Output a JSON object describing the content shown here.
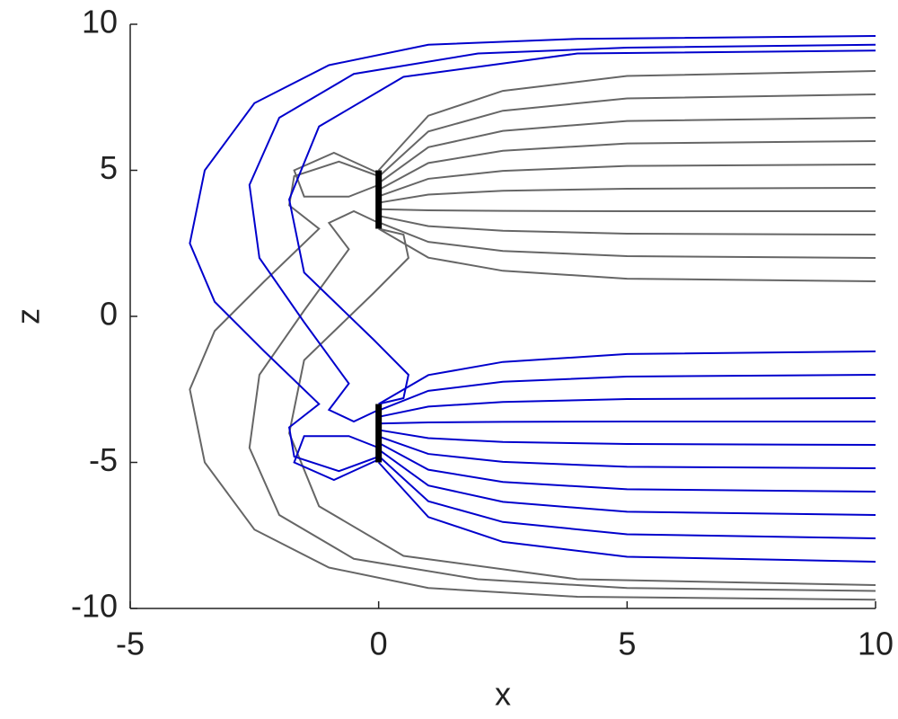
{
  "chart_data": {
    "type": "line",
    "xlabel": "x",
    "ylabel": "z",
    "xlim": [
      -5,
      10
    ],
    "ylim": [
      -10,
      10
    ],
    "xticks": [
      -5,
      0,
      5,
      10
    ],
    "yticks": [
      -10,
      -5,
      0,
      5,
      10
    ],
    "series": [
      {
        "color": "#666666",
        "x": [
          0,
          1,
          2.5,
          5,
          10
        ],
        "y": [
          3,
          2.01,
          1.56,
          1.29,
          1.2
        ]
      },
      {
        "color": "#666666",
        "x": [
          0,
          1,
          2.5,
          5,
          10
        ],
        "y": [
          3.22,
          2.55,
          2.24,
          2.06,
          2
        ]
      },
      {
        "color": "#666666",
        "x": [
          0,
          1,
          2.5,
          5,
          10
        ],
        "y": [
          3.44,
          3.09,
          2.93,
          2.83,
          2.8
        ]
      },
      {
        "color": "#666666",
        "x": [
          0,
          1,
          2.5,
          5,
          10
        ],
        "y": [
          3.67,
          3.63,
          3.61,
          3.6,
          3.6
        ]
      },
      {
        "color": "#666666",
        "x": [
          0,
          1,
          2.5,
          5,
          10
        ],
        "y": [
          3.89,
          4.17,
          4.3,
          4.37,
          4.4
        ]
      },
      {
        "color": "#666666",
        "x": [
          0,
          1,
          2.5,
          5,
          10
        ],
        "y": [
          4.11,
          4.71,
          4.98,
          5.15,
          5.2
        ]
      },
      {
        "color": "#666666",
        "x": [
          0,
          1,
          2.5,
          5,
          10
        ],
        "y": [
          4.33,
          5.25,
          5.67,
          5.92,
          6
        ]
      },
      {
        "color": "#666666",
        "x": [
          0,
          1,
          2.5,
          5,
          10
        ],
        "y": [
          4.56,
          5.79,
          6.35,
          6.69,
          6.8
        ]
      },
      {
        "color": "#666666",
        "x": [
          0,
          1,
          2.5,
          5,
          10
        ],
        "y": [
          4.78,
          6.33,
          7.04,
          7.46,
          7.6
        ]
      },
      {
        "color": "#666666",
        "x": [
          0,
          1,
          2.5,
          5,
          10
        ],
        "y": [
          5,
          6.87,
          7.72,
          8.23,
          8.4
        ]
      },
      {
        "color": "#666666",
        "x": [
          0,
          -0.9,
          -1.7,
          -1.5,
          -0.6,
          0
        ],
        "y": [
          4.9,
          5.6,
          5,
          4.1,
          4.1,
          4.5
        ]
      },
      {
        "color": "#666666",
        "x": [
          0,
          -0.8,
          -1.7,
          -1.8,
          -1.2,
          -2.3,
          -3.3,
          -3.8,
          -3.5,
          -2.5,
          -1,
          1,
          4,
          10
        ],
        "y": [
          4.8,
          5.3,
          4.8,
          3.8,
          3,
          1.2,
          -0.5,
          -2.5,
          -5,
          -7.3,
          -8.6,
          -9.3,
          -9.6,
          -9.7
        ]
      },
      {
        "color": "#666666",
        "x": [
          0,
          -0.5,
          -1,
          -0.6,
          -1.5,
          -2.4,
          -2.6,
          -2,
          -0.5,
          2,
          5,
          10
        ],
        "y": [
          3.2,
          3.6,
          3.2,
          2.3,
          0.2,
          -2,
          -4.5,
          -6.8,
          -8.3,
          -9,
          -9.3,
          -9.4
        ]
      },
      {
        "color": "#666666",
        "x": [
          0,
          0.5,
          0.6,
          -0.1,
          -1.5,
          -1.8,
          -1.2,
          0.5,
          4,
          10
        ],
        "y": [
          3,
          2.8,
          2,
          0.8,
          -1.5,
          -4,
          -6.5,
          -8.2,
          -9,
          -9.2
        ]
      },
      {
        "color": "#0000cc",
        "x": [
          0,
          1,
          2.5,
          5,
          10
        ],
        "y": [
          -3,
          -2.01,
          -1.56,
          -1.29,
          -1.2
        ]
      },
      {
        "color": "#0000cc",
        "x": [
          0,
          1,
          2.5,
          5,
          10
        ],
        "y": [
          -3.22,
          -2.55,
          -2.24,
          -2.06,
          -2
        ]
      },
      {
        "color": "#0000cc",
        "x": [
          0,
          1,
          2.5,
          5,
          10
        ],
        "y": [
          -3.44,
          -3.09,
          -2.93,
          -2.83,
          -2.8
        ]
      },
      {
        "color": "#0000cc",
        "x": [
          0,
          1,
          2.5,
          5,
          10
        ],
        "y": [
          -3.67,
          -3.63,
          -3.61,
          -3.6,
          -3.6
        ]
      },
      {
        "color": "#0000cc",
        "x": [
          0,
          1,
          2.5,
          5,
          10
        ],
        "y": [
          -3.89,
          -4.17,
          -4.3,
          -4.37,
          -4.4
        ]
      },
      {
        "color": "#0000cc",
        "x": [
          0,
          1,
          2.5,
          5,
          10
        ],
        "y": [
          -4.11,
          -4.71,
          -4.98,
          -5.15,
          -5.2
        ]
      },
      {
        "color": "#0000cc",
        "x": [
          0,
          1,
          2.5,
          5,
          10
        ],
        "y": [
          -4.33,
          -5.25,
          -5.67,
          -5.92,
          -6
        ]
      },
      {
        "color": "#0000cc",
        "x": [
          0,
          1,
          2.5,
          5,
          10
        ],
        "y": [
          -4.56,
          -5.79,
          -6.35,
          -6.69,
          -6.8
        ]
      },
      {
        "color": "#0000cc",
        "x": [
          0,
          1,
          2.5,
          5,
          10
        ],
        "y": [
          -4.78,
          -6.33,
          -7.04,
          -7.46,
          -7.6
        ]
      },
      {
        "color": "#0000cc",
        "x": [
          0,
          1,
          2.5,
          5,
          10
        ],
        "y": [
          -5,
          -6.87,
          -7.72,
          -8.23,
          -8.4
        ]
      },
      {
        "color": "#0000cc",
        "x": [
          0,
          -0.9,
          -1.7,
          -1.5,
          -0.6,
          0
        ],
        "y": [
          -4.9,
          -5.6,
          -5,
          -4.1,
          -4.1,
          -4.5
        ]
      },
      {
        "color": "#0000cc",
        "x": [
          0,
          -0.8,
          -1.7,
          -1.8,
          -1.2,
          -2.3,
          -3.3,
          -3.8,
          -3.5,
          -2.5,
          -1,
          1,
          4,
          10
        ],
        "y": [
          -4.8,
          -5.3,
          -4.8,
          -3.8,
          -3,
          -1.2,
          0.5,
          2.5,
          5,
          7.3,
          8.6,
          9.3,
          9.5,
          9.6
        ]
      },
      {
        "color": "#0000cc",
        "x": [
          0,
          -0.5,
          -1,
          -0.6,
          -1.5,
          -2.4,
          -2.6,
          -2,
          -0.5,
          2,
          5,
          10
        ],
        "y": [
          -3.2,
          -3.6,
          -3.2,
          -2.3,
          -0.2,
          2,
          4.5,
          6.8,
          8.3,
          9,
          9.2,
          9.3
        ]
      },
      {
        "color": "#0000cc",
        "x": [
          0,
          0.5,
          0.6,
          -0.1,
          -1.5,
          -1.8,
          -1.2,
          0.5,
          4,
          10
        ],
        "y": [
          -3,
          -2.8,
          -2,
          -0.8,
          1.5,
          4,
          6.5,
          8.2,
          9,
          9.1
        ]
      }
    ],
    "rods": [
      {
        "color": "#000000",
        "x": [
          0,
          0
        ],
        "y": [
          3,
          5
        ]
      },
      {
        "color": "#000000",
        "x": [
          0,
          0
        ],
        "y": [
          -3,
          -5
        ]
      }
    ]
  }
}
